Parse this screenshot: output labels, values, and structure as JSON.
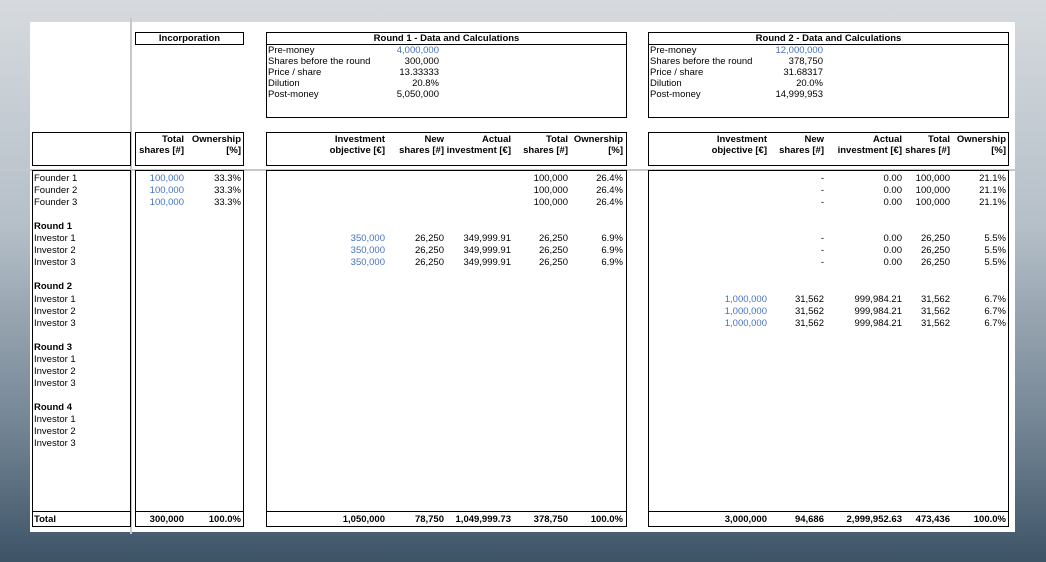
{
  "header": {
    "incorporation": "Incorporation",
    "round1": "Round 1 - Data and Calculations",
    "round2": "Round 2 - Data and Calculations"
  },
  "round1_info": [
    {
      "label": "Pre-money",
      "value": "4,000,000",
      "blue": true
    },
    {
      "label": "Shares before the round",
      "value": "300,000"
    },
    {
      "label": "Price / share",
      "value": "13.33333"
    },
    {
      "label": "Dilution",
      "value": "20.8%"
    },
    {
      "label": "Post-money",
      "value": "5,050,000"
    }
  ],
  "round2_info": [
    {
      "label": "Pre-money",
      "value": "12,000,000",
      "blue": true
    },
    {
      "label": "Shares before the round",
      "value": "378,750"
    },
    {
      "label": "Price / share",
      "value": "31.68317"
    },
    {
      "label": "Dilution",
      "value": "20.0%"
    },
    {
      "label": "Post-money",
      "value": "14,999,953"
    }
  ],
  "columns": {
    "incorporation": [
      {
        "line1": "Total",
        "line2": "shares [#]"
      },
      {
        "line1": "Ownership",
        "line2": "[%]"
      }
    ],
    "round": [
      {
        "line1": "Investment",
        "line2": "objective [€]"
      },
      {
        "line1": "New",
        "line2": "shares [#]"
      },
      {
        "line1": "Actual",
        "line2": "investment [€]"
      },
      {
        "line1": "Total",
        "line2": "shares [#]"
      },
      {
        "line1": "Ownership",
        "line2": "[%]"
      }
    ]
  },
  "rows": [
    {
      "label": "Founder 1",
      "inc": [
        "100,000",
        "33.3%"
      ],
      "r1": [
        "",
        "",
        "",
        "100,000",
        "26.4%"
      ],
      "r2": [
        "",
        "-",
        "0.00",
        "100,000",
        "21.1%"
      ]
    },
    {
      "label": "Founder 2",
      "inc": [
        "100,000",
        "33.3%"
      ],
      "r1": [
        "",
        "",
        "",
        "100,000",
        "26.4%"
      ],
      "r2": [
        "",
        "-",
        "0.00",
        "100,000",
        "21.1%"
      ]
    },
    {
      "label": "Founder 3",
      "inc": [
        "100,000",
        "33.3%"
      ],
      "r1": [
        "",
        "",
        "",
        "100,000",
        "26.4%"
      ],
      "r2": [
        "",
        "-",
        "0.00",
        "100,000",
        "21.1%"
      ]
    },
    {
      "label": "",
      "spacer": true
    },
    {
      "label": "Round 1",
      "section": true
    },
    {
      "label": "Investor 1",
      "inc": [
        "",
        ""
      ],
      "r1": [
        "350,000",
        "26,250",
        "349,999.91",
        "26,250",
        "6.9%"
      ],
      "r2": [
        "",
        "-",
        "0.00",
        "26,250",
        "5.5%"
      ]
    },
    {
      "label": "Investor 2",
      "inc": [
        "",
        ""
      ],
      "r1": [
        "350,000",
        "26,250",
        "349,999.91",
        "26,250",
        "6.9%"
      ],
      "r2": [
        "",
        "-",
        "0.00",
        "26,250",
        "5.5%"
      ]
    },
    {
      "label": "Investor 3",
      "inc": [
        "",
        ""
      ],
      "r1": [
        "350,000",
        "26,250",
        "349,999.91",
        "26,250",
        "6.9%"
      ],
      "r2": [
        "",
        "-",
        "0.00",
        "26,250",
        "5.5%"
      ]
    },
    {
      "label": "",
      "spacer": true
    },
    {
      "label": "Round 2",
      "section": true
    },
    {
      "label": "Investor 1",
      "inc": [
        "",
        ""
      ],
      "r1": [
        "",
        "",
        "",
        "",
        ""
      ],
      "r2": [
        "1,000,000",
        "31,562",
        "999,984.21",
        "31,562",
        "6.7%"
      ]
    },
    {
      "label": "Investor 2",
      "inc": [
        "",
        ""
      ],
      "r1": [
        "",
        "",
        "",
        "",
        ""
      ],
      "r2": [
        "1,000,000",
        "31,562",
        "999,984.21",
        "31,562",
        "6.7%"
      ]
    },
    {
      "label": "Investor 3",
      "inc": [
        "",
        ""
      ],
      "r1": [
        "",
        "",
        "",
        "",
        ""
      ],
      "r2": [
        "1,000,000",
        "31,562",
        "999,984.21",
        "31,562",
        "6.7%"
      ]
    },
    {
      "label": "",
      "spacer": true
    },
    {
      "label": "Round 3",
      "section": true
    },
    {
      "label": "Investor 1"
    },
    {
      "label": "Investor 2"
    },
    {
      "label": "Investor 3"
    },
    {
      "label": "",
      "spacer": true
    },
    {
      "label": "Round 4",
      "section": true
    },
    {
      "label": "Investor 1"
    },
    {
      "label": "Investor 2"
    },
    {
      "label": "Investor 3"
    }
  ],
  "total": {
    "label": "Total",
    "inc": [
      "300,000",
      "100.0%"
    ],
    "r1": [
      "1,050,000",
      "78,750",
      "1,049,999.73",
      "378,750",
      "100.0%"
    ],
    "r2": [
      "3,000,000",
      "94,686",
      "2,999,952.63",
      "473,436",
      "100.0%"
    ]
  }
}
